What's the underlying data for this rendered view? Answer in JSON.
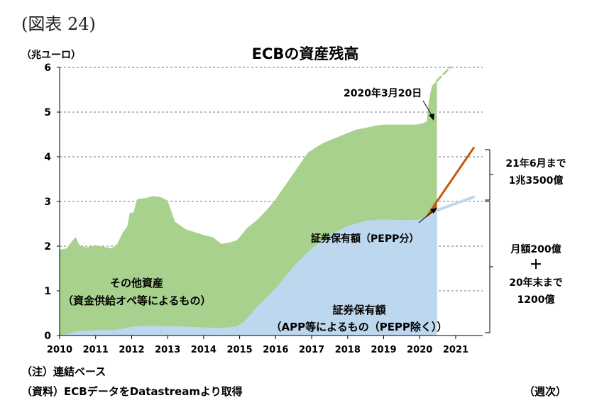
{
  "figure_label": "(図表 24)",
  "note": "（注）連結ベース",
  "source": "（資料）ECBデータをDatastreamより取得",
  "chart_data": {
    "type": "area",
    "title": "ECBの資産残高",
    "ylabel": "（兆ユーロ）",
    "xlabel": "（週次）",
    "ylim": [
      0,
      6
    ],
    "xlim": [
      2010,
      2021.75
    ],
    "yticks": [
      "0",
      "1",
      "2",
      "3",
      "4",
      "5",
      "6"
    ],
    "xticks": [
      "2010",
      "2011",
      "2012",
      "2013",
      "2014",
      "2015",
      "2016",
      "2017",
      "2018",
      "2019",
      "2020",
      "2021"
    ],
    "grid": "horizontal-dashed",
    "colors": {
      "total_fill": "#a9d18e",
      "securities_fill": "#bdd7ee",
      "pepp_fill": "#c55a11",
      "pepp_line": "#c55a11",
      "app_projection": "#bdd7ee",
      "total_projection": "#a9d18e"
    },
    "series": [
      {
        "name": "total",
        "x": [
          2010.0,
          2010.2,
          2010.35,
          2010.45,
          2010.55,
          2010.75,
          2011.0,
          2011.25,
          2011.45,
          2011.6,
          2011.75,
          2011.88,
          2011.95,
          2012.05,
          2012.15,
          2012.4,
          2012.6,
          2012.8,
          2013.0,
          2013.2,
          2013.5,
          2013.8,
          2014.0,
          2014.25,
          2014.5,
          2014.7,
          2014.9,
          2015.0,
          2015.2,
          2015.5,
          2015.8,
          2016.0,
          2016.3,
          2016.6,
          2016.9,
          2017.1,
          2017.3,
          2017.6,
          2017.9,
          2018.2,
          2018.5,
          2018.8,
          2019.0,
          2019.3,
          2019.6,
          2019.9,
          2020.1,
          2020.2,
          2020.25,
          2020.3,
          2020.35,
          2020.42,
          2020.48
        ],
        "values": [
          1.92,
          1.95,
          2.12,
          2.2,
          2.02,
          1.97,
          2.02,
          1.98,
          1.95,
          2.05,
          2.3,
          2.45,
          2.75,
          2.75,
          3.05,
          3.08,
          3.12,
          3.1,
          3.02,
          2.55,
          2.38,
          2.3,
          2.25,
          2.2,
          2.05,
          2.08,
          2.12,
          2.2,
          2.4,
          2.6,
          2.85,
          3.05,
          3.4,
          3.75,
          4.1,
          4.2,
          4.3,
          4.4,
          4.5,
          4.6,
          4.65,
          4.7,
          4.72,
          4.72,
          4.72,
          4.72,
          4.75,
          4.8,
          5.2,
          5.45,
          5.6,
          5.65,
          5.7
        ]
      },
      {
        "name": "securities",
        "x": [
          2010.0,
          2010.3,
          2010.5,
          2011.0,
          2011.5,
          2011.7,
          2012.0,
          2012.5,
          2013.0,
          2013.5,
          2014.0,
          2014.5,
          2014.9,
          2015.1,
          2015.5,
          2016.0,
          2016.5,
          2017.0,
          2017.5,
          2018.0,
          2018.5,
          2019.0,
          2019.5,
          2020.0,
          2020.2,
          2020.35,
          2020.48
        ],
        "values": [
          0.0,
          0.05,
          0.1,
          0.12,
          0.12,
          0.15,
          0.2,
          0.22,
          0.21,
          0.2,
          0.18,
          0.17,
          0.2,
          0.3,
          0.65,
          1.05,
          1.55,
          1.95,
          2.25,
          2.45,
          2.57,
          2.6,
          2.58,
          2.6,
          2.65,
          2.75,
          2.8
        ]
      },
      {
        "name": "pepp",
        "x": [
          2020.2,
          2020.3,
          2020.4,
          2020.48
        ],
        "values": [
          2.7,
          2.82,
          2.95,
          3.05
        ]
      },
      {
        "name": "pepp_projection",
        "x": [
          2020.48,
          2021.5
        ],
        "values": [
          3.0,
          4.2
        ]
      },
      {
        "name": "app_projection",
        "x": [
          2020.48,
          2021.5
        ],
        "values": [
          2.8,
          3.1
        ]
      },
      {
        "name": "total_projection",
        "x": [
          2020.48,
          2020.85
        ],
        "values": [
          5.7,
          6.0
        ]
      }
    ],
    "annotations": {
      "date": "2020年3月20日",
      "other_assets_1": "その他資産",
      "other_assets_2": "（資金供給オペ等によるもの）",
      "pepp": "証券保有額（PEPP分）",
      "app_1": "証券保有額",
      "app_2": "（APP等によるもの（PEPP除く））",
      "pepp_target_1": "21年6月まで",
      "pepp_target_2": "1兆3500億",
      "app_target_1": "月額200億",
      "app_target_2": "＋",
      "app_target_3": "20年末まで",
      "app_target_4": "1200億"
    }
  }
}
